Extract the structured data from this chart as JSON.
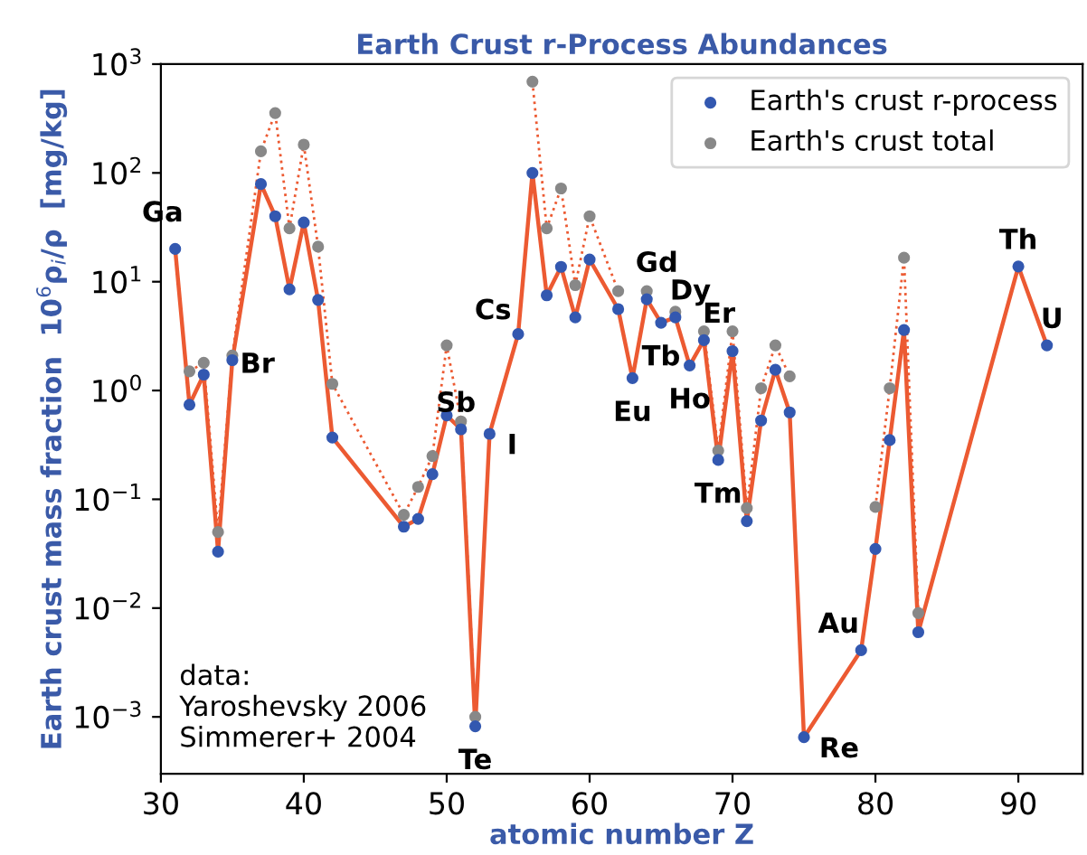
{
  "chart_data": {
    "type": "line",
    "title": "Earth Crust r-Process Abundances",
    "xlabel": "atomic number Z",
    "ylabel": "Earth crust mass fraction  10$^{6}$ρ$_{i}$/ρ  [mg/kg]",
    "x": [
      31,
      32,
      33,
      34,
      35,
      37,
      38,
      39,
      40,
      41,
      42,
      47,
      48,
      49,
      50,
      51,
      52,
      53,
      55,
      56,
      57,
      58,
      59,
      60,
      62,
      63,
      64,
      65,
      66,
      67,
      68,
      69,
      70,
      71,
      72,
      73,
      74,
      75,
      79,
      80,
      81,
      82,
      83,
      90,
      92
    ],
    "series": [
      {
        "name": "Earth's crust r-process",
        "color": "#3358b0",
        "line_style": "solid",
        "values": [
          20,
          0.74,
          1.4,
          0.033,
          1.9,
          79,
          40,
          8.5,
          35,
          6.8,
          0.37,
          0.056,
          0.066,
          0.17,
          0.59,
          0.44,
          0.00082,
          0.4,
          3.3,
          100,
          7.5,
          13.7,
          4.7,
          16,
          5.6,
          1.3,
          6.9,
          4.2,
          4.7,
          1.7,
          2.9,
          0.23,
          2.3,
          0.063,
          0.53,
          1.55,
          0.63,
          0.00065,
          0.0041,
          0.035,
          0.35,
          3.6,
          0.006,
          13.8,
          2.6
        ]
      },
      {
        "name": "Earth's crust total",
        "color": "#888888",
        "line_style": "dotted",
        "values": [
          null,
          1.5,
          1.8,
          0.05,
          2.1,
          158,
          355,
          31,
          182,
          21,
          1.15,
          0.072,
          0.13,
          0.25,
          2.6,
          0.52,
          0.001,
          null,
          null,
          690,
          31,
          72,
          9.3,
          40,
          8.2,
          null,
          8.2,
          null,
          5.3,
          null,
          3.5,
          0.28,
          3.5,
          0.083,
          1.05,
          2.6,
          1.35,
          null,
          null,
          0.085,
          1.05,
          16.6,
          0.009,
          null,
          null
        ]
      }
    ],
    "log": true,
    "xlim": [
      30,
      94.5
    ],
    "ylim": [
      0.0003,
      1000
    ],
    "xticks": [
      30,
      40,
      50,
      60,
      70,
      80,
      90
    ],
    "yticks": [
      {
        "value": 0.001,
        "label": "10$^{−3}$"
      },
      {
        "value": 0.01,
        "label": "10$^{−2}$"
      },
      {
        "value": 0.1,
        "label": "10$^{−1}$"
      },
      {
        "value": 1,
        "label": "10$^{0}$"
      },
      {
        "value": 10,
        "label": "10$^{1}$"
      },
      {
        "value": 100,
        "label": "10$^{2}$"
      },
      {
        "value": 1000,
        "label": "10$^{3}$"
      }
    ],
    "grid": false,
    "legend": "top right",
    "marker": "circle",
    "annotations": [
      {
        "text": "Ga",
        "x": 31,
        "y": 20
      },
      {
        "text": "Br",
        "x": 35,
        "y": 1.9
      },
      {
        "text": "Sb",
        "x": 51,
        "y": 0.44
      },
      {
        "text": "Te",
        "x": 52,
        "y": 0.00082
      },
      {
        "text": "I",
        "x": 53,
        "y": 0.4
      },
      {
        "text": "Cs",
        "x": 55,
        "y": 3.3
      },
      {
        "text": "Eu",
        "x": 63,
        "y": 1.3
      },
      {
        "text": "Gd",
        "x": 64,
        "y": 6.9
      },
      {
        "text": "Tb",
        "x": 65,
        "y": 4.2
      },
      {
        "text": "Dy",
        "x": 66,
        "y": 4.7
      },
      {
        "text": "Ho",
        "x": 67,
        "y": 1.7
      },
      {
        "text": "Er",
        "x": 68,
        "y": 2.9
      },
      {
        "text": "Tm",
        "x": 69,
        "y": 0.23
      },
      {
        "text": "Re",
        "x": 75,
        "y": 0.00065
      },
      {
        "text": "Au",
        "x": 79,
        "y": 0.0041
      },
      {
        "text": "Th",
        "x": 90,
        "y": 13.8
      },
      {
        "text": "U",
        "x": 92,
        "y": 2.6
      },
      "data:\nYaroshevsky 2006\nSimmerer+ 2004"
    ]
  }
}
